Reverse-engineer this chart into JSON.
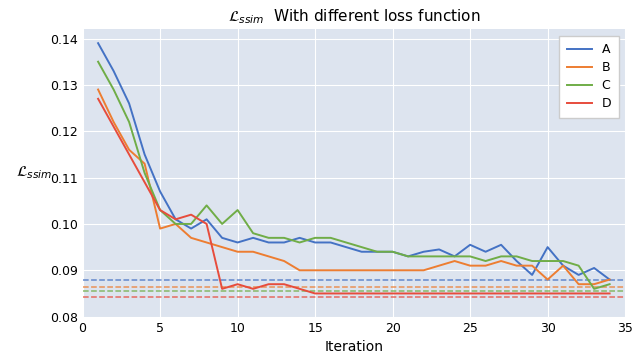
{
  "title": "$\\mathcal{L}_{ssim}$  With different loss function",
  "xlabel": "Iteration",
  "ylabel": "$\\mathcal{L}_{ssim}$",
  "xlim": [
    0,
    35
  ],
  "ylim": [
    0.08,
    0.142
  ],
  "yticks": [
    0.08,
    0.09,
    0.1,
    0.11,
    0.12,
    0.13,
    0.14
  ],
  "xticks": [
    0,
    5,
    10,
    15,
    20,
    25,
    30,
    35
  ],
  "background_color": "#dde4ef",
  "fig_background": "#ffffff",
  "colors": {
    "A": "#4472c4",
    "B": "#ed7d31",
    "C": "#70ad47",
    "D": "#e74c3c"
  },
  "hline_values": {
    "A": 0.0878,
    "B": 0.0865,
    "C": 0.0855,
    "D": 0.0842
  },
  "series_A": [
    0.139,
    0.133,
    0.126,
    0.115,
    0.107,
    0.101,
    0.099,
    0.101,
    0.097,
    0.096,
    0.097,
    0.096,
    0.096,
    0.097,
    0.096,
    0.096,
    0.095,
    0.094,
    0.094,
    0.094,
    0.093,
    0.094,
    0.0945,
    0.093,
    0.0955,
    0.094,
    0.0955,
    0.092,
    0.089,
    0.095,
    0.091,
    0.089,
    0.0905,
    0.088
  ],
  "series_B": [
    0.129,
    0.122,
    0.116,
    0.113,
    0.099,
    0.1,
    0.097,
    0.096,
    0.095,
    0.094,
    0.094,
    0.093,
    0.092,
    0.09,
    0.09,
    0.09,
    0.09,
    0.09,
    0.09,
    0.09,
    0.09,
    0.09,
    0.091,
    0.092,
    0.091,
    0.091,
    0.092,
    0.091,
    0.091,
    0.088,
    0.091,
    0.087,
    0.087,
    0.088
  ],
  "series_C": [
    0.135,
    0.129,
    0.122,
    0.111,
    0.103,
    0.1,
    0.1,
    0.104,
    0.1,
    0.103,
    0.098,
    0.097,
    0.097,
    0.096,
    0.097,
    0.097,
    0.096,
    0.095,
    0.094,
    0.094,
    0.093,
    0.093,
    0.093,
    0.093,
    0.093,
    0.092,
    0.093,
    0.093,
    0.092,
    0.092,
    0.092,
    0.091,
    0.086,
    0.087
  ],
  "series_D": [
    0.127,
    0.121,
    0.115,
    0.109,
    0.103,
    0.101,
    0.102,
    0.1,
    0.086,
    0.087,
    0.086,
    0.087,
    0.087,
    0.086,
    0.085,
    0.085,
    0.085,
    0.085,
    0.085,
    0.085,
    0.085,
    0.085,
    0.085,
    0.085,
    0.085,
    0.085,
    0.085,
    0.085,
    0.085,
    0.085,
    0.085,
    0.085,
    0.085,
    0.085
  ]
}
